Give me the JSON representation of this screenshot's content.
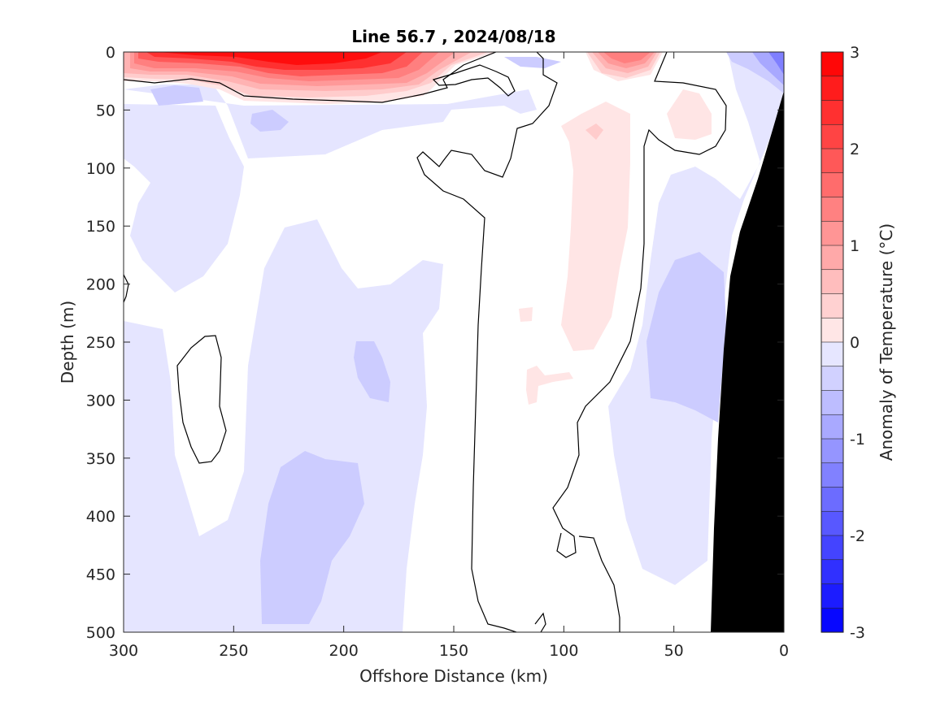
{
  "chart_data": {
    "type": "heatmap",
    "subtype": "filled-contour section",
    "title": "Line 56.7 , 2024/08/18",
    "xlabel": "Offshore Distance (km)",
    "ylabel": "Depth (m)",
    "xlim": [
      300,
      0
    ],
    "x_reversed": true,
    "ylim": [
      0,
      500
    ],
    "y_reversed": true,
    "xticks": [
      "300",
      "250",
      "200",
      "150",
      "100",
      "50",
      "0"
    ],
    "yticks": [
      "0",
      "50",
      "100",
      "150",
      "200",
      "250",
      "300",
      "350",
      "400",
      "450",
      "500"
    ],
    "grid": false,
    "colorbar": {
      "label": "Anomaly of Temperature (°C)",
      "range": [
        -3,
        3
      ],
      "step": 0.25,
      "ticks": [
        "3",
        "2",
        "1",
        "0",
        "-1",
        "-2",
        "-3"
      ],
      "colors": {
        "warm": "#ff0000",
        "neutral": "#ffffff",
        "cold": "#0000ff"
      }
    },
    "zero_contour_color": "#000000",
    "bathymetry_color": "#000000",
    "features": [
      {
        "name": "surface warm layer",
        "x_range": [
          300,
          145
        ],
        "depth_range": [
          0,
          45
        ],
        "max_anomaly": 3.0
      },
      {
        "name": "near-shore surface warm patch",
        "x_range": [
          88,
          58
        ],
        "depth_range": [
          0,
          30
        ],
        "max_anomaly": 1.7
      },
      {
        "name": "surface cold patch",
        "x_range": [
          30,
          0
        ],
        "depth_range": [
          0,
          40
        ],
        "min_anomaly": -1.75
      },
      {
        "name": "subsurface warm tongue",
        "x_range": [
          100,
          70
        ],
        "depth_range": [
          45,
          260
        ],
        "max_anomaly": 0.5
      },
      {
        "name": "deep cold core",
        "x_range": [
          237,
          195
        ],
        "depth_range": [
          345,
          495
        ],
        "min_anomaly": -0.75
      },
      {
        "name": "near-shore cold core",
        "x_range": [
          60,
          25
        ],
        "depth_range": [
          170,
          360
        ],
        "min_anomaly": -0.75
      }
    ]
  }
}
